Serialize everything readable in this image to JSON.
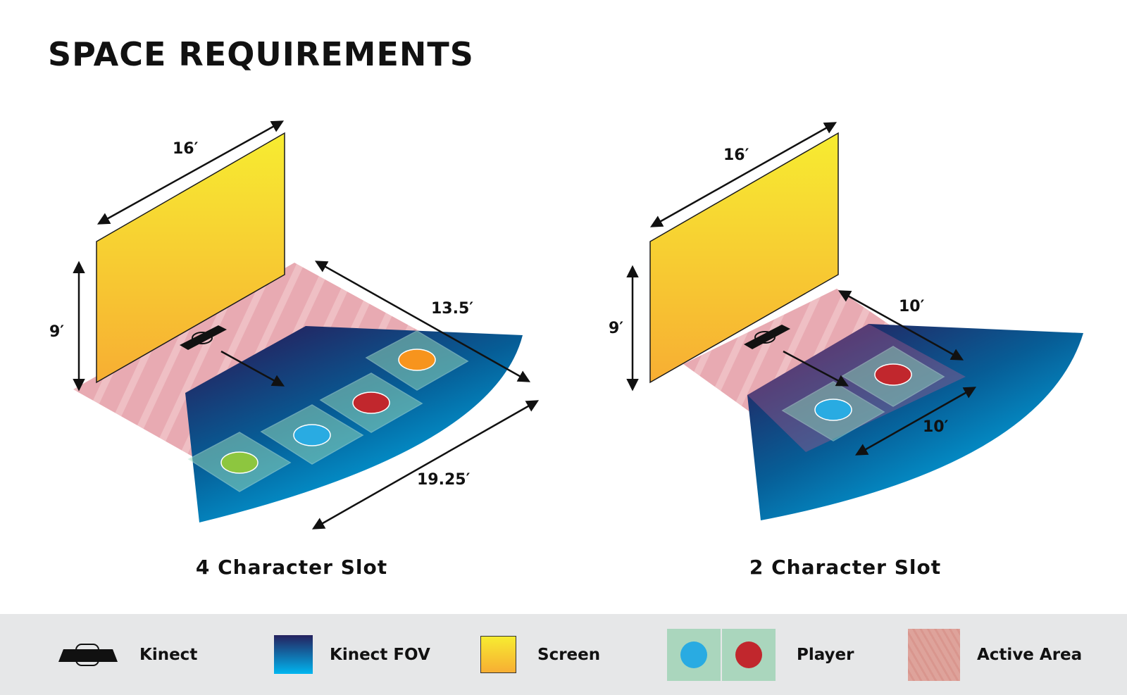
{
  "title": "SPACE REQUIREMENTS",
  "diagrams": [
    {
      "caption": "4 Character Slot",
      "dims": {
        "screen_width": "16′",
        "screen_height": "9′",
        "active_depth": "13.5′",
        "fov_width": "19.25′"
      },
      "players": [
        "green",
        "blue",
        "red",
        "orange"
      ]
    },
    {
      "caption": "2 Character Slot",
      "dims": {
        "screen_width": "16′",
        "screen_height": "9′",
        "active_depth": "10′",
        "active_width": "10′"
      },
      "players": [
        "blue",
        "red"
      ]
    }
  ],
  "legend": {
    "kinect": "Kinect",
    "kinect_fov": "Kinect FOV",
    "screen": "Screen",
    "player": "Player",
    "active_area": "Active Area"
  },
  "colors": {
    "screen_top": "#f7ec31",
    "screen_bottom": "#f7ae33",
    "fov_dark": "#25215e",
    "fov_light": "#00b6f0",
    "active_area": "#e7a6ae",
    "player_tile": "#8fd3b6",
    "player_green": "#8dc63f",
    "player_blue": "#29abe2",
    "player_red": "#c1272d",
    "player_orange": "#f7941d",
    "legend_bg": "#e6e7e8"
  }
}
